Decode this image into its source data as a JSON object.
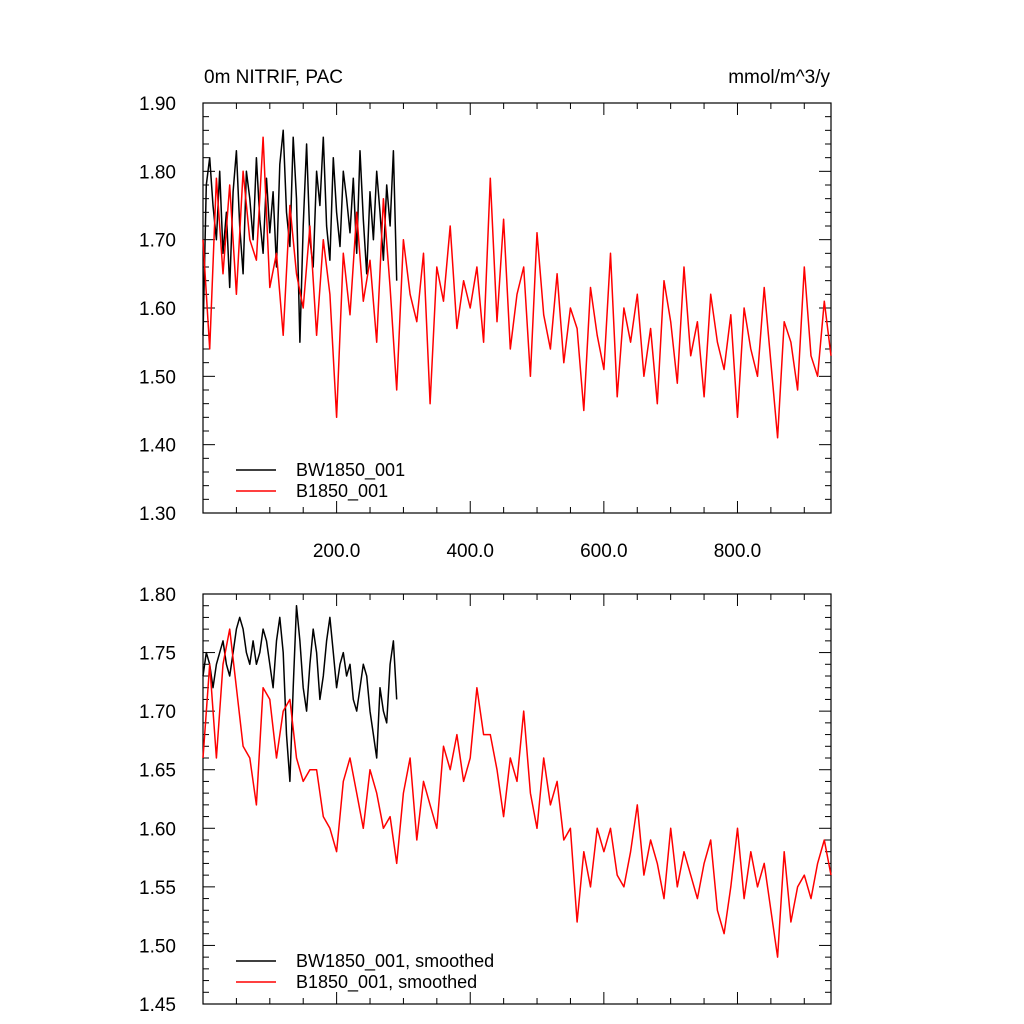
{
  "chart_data": [
    {
      "type": "line",
      "title": "0m NITRIF, PAC",
      "units": "mmol/m^3/y",
      "xlim": [
        0,
        940
      ],
      "ylim": [
        1.3,
        1.9
      ],
      "x_ticks": [
        200,
        400,
        600,
        800
      ],
      "x_tick_labels": [
        "200.0",
        "400.0",
        "600.0",
        "800.0"
      ],
      "y_ticks": [
        1.3,
        1.4,
        1.5,
        1.6,
        1.7,
        1.8,
        1.9
      ],
      "y_tick_labels": [
        "1.30",
        "1.40",
        "1.50",
        "1.60",
        "1.70",
        "1.80",
        "1.90"
      ],
      "grid": false,
      "legend_position": "bottom-left",
      "series": [
        {
          "name": "BW1850_001",
          "color": "#000000",
          "x": [
            0,
            5,
            10,
            15,
            20,
            25,
            30,
            35,
            40,
            45,
            50,
            55,
            60,
            65,
            70,
            75,
            80,
            85,
            90,
            95,
            100,
            105,
            110,
            115,
            120,
            125,
            130,
            135,
            140,
            145,
            150,
            155,
            160,
            165,
            170,
            175,
            180,
            185,
            190,
            195,
            200,
            205,
            210,
            215,
            220,
            225,
            230,
            235,
            240,
            245,
            250,
            255,
            260,
            265,
            270,
            275,
            280,
            285,
            290
          ],
          "values": [
            1.56,
            1.78,
            1.82,
            1.75,
            1.7,
            1.8,
            1.68,
            1.74,
            1.63,
            1.77,
            1.83,
            1.72,
            1.65,
            1.8,
            1.76,
            1.7,
            1.82,
            1.73,
            1.68,
            1.79,
            1.71,
            1.77,
            1.66,
            1.81,
            1.86,
            1.74,
            1.69,
            1.85,
            1.76,
            1.55,
            1.72,
            1.84,
            1.7,
            1.66,
            1.8,
            1.75,
            1.85,
            1.72,
            1.67,
            1.82,
            1.74,
            1.69,
            1.8,
            1.76,
            1.71,
            1.79,
            1.68,
            1.83,
            1.73,
            1.65,
            1.77,
            1.7,
            1.8,
            1.74,
            1.67,
            1.78,
            1.72,
            1.83,
            1.64
          ]
        },
        {
          "name": "B1850_001",
          "color": "#ff0000",
          "x": [
            0,
            10,
            20,
            30,
            40,
            50,
            60,
            70,
            80,
            90,
            100,
            110,
            120,
            130,
            140,
            150,
            160,
            170,
            180,
            190,
            200,
            210,
            220,
            230,
            240,
            250,
            260,
            270,
            280,
            290,
            300,
            310,
            320,
            330,
            340,
            350,
            360,
            370,
            380,
            390,
            400,
            410,
            420,
            430,
            440,
            450,
            460,
            470,
            480,
            490,
            500,
            510,
            520,
            530,
            540,
            550,
            560,
            570,
            580,
            590,
            600,
            610,
            620,
            630,
            640,
            650,
            660,
            670,
            680,
            690,
            700,
            710,
            720,
            730,
            740,
            750,
            760,
            770,
            780,
            790,
            800,
            810,
            820,
            830,
            840,
            850,
            860,
            870,
            880,
            890,
            900,
            910,
            920,
            930,
            940
          ],
          "values": [
            1.7,
            1.54,
            1.79,
            1.65,
            1.78,
            1.62,
            1.8,
            1.7,
            1.67,
            1.85,
            1.63,
            1.68,
            1.56,
            1.75,
            1.65,
            1.6,
            1.72,
            1.56,
            1.7,
            1.62,
            1.44,
            1.68,
            1.59,
            1.74,
            1.61,
            1.67,
            1.55,
            1.76,
            1.63,
            1.48,
            1.7,
            1.62,
            1.58,
            1.68,
            1.46,
            1.66,
            1.61,
            1.72,
            1.57,
            1.64,
            1.6,
            1.66,
            1.55,
            1.79,
            1.58,
            1.73,
            1.54,
            1.62,
            1.66,
            1.5,
            1.71,
            1.59,
            1.54,
            1.65,
            1.52,
            1.6,
            1.57,
            1.45,
            1.63,
            1.56,
            1.51,
            1.68,
            1.47,
            1.6,
            1.55,
            1.62,
            1.5,
            1.57,
            1.46,
            1.64,
            1.58,
            1.49,
            1.66,
            1.53,
            1.58,
            1.47,
            1.62,
            1.55,
            1.51,
            1.59,
            1.44,
            1.6,
            1.54,
            1.5,
            1.63,
            1.52,
            1.41,
            1.58,
            1.55,
            1.48,
            1.66,
            1.53,
            1.5,
            1.61,
            1.53
          ]
        }
      ]
    },
    {
      "type": "line",
      "title": "",
      "xlim": [
        0,
        940
      ],
      "ylim": [
        1.45,
        1.8
      ],
      "x_ticks": [
        200,
        400,
        600,
        800
      ],
      "y_ticks": [
        1.45,
        1.5,
        1.55,
        1.6,
        1.65,
        1.7,
        1.75,
        1.8
      ],
      "y_tick_labels": [
        "1.45",
        "1.50",
        "1.55",
        "1.60",
        "1.65",
        "1.70",
        "1.75",
        "1.80"
      ],
      "grid": false,
      "legend_position": "bottom-left",
      "series": [
        {
          "name": "BW1850_001, smoothed",
          "color": "#000000",
          "x": [
            0,
            5,
            10,
            15,
            20,
            25,
            30,
            35,
            40,
            45,
            50,
            55,
            60,
            65,
            70,
            75,
            80,
            85,
            90,
            95,
            100,
            105,
            110,
            115,
            120,
            125,
            130,
            135,
            140,
            145,
            150,
            155,
            160,
            165,
            170,
            175,
            180,
            185,
            190,
            195,
            200,
            205,
            210,
            215,
            220,
            225,
            230,
            235,
            240,
            245,
            250,
            255,
            260,
            265,
            270,
            275,
            280,
            285,
            290
          ],
          "values": [
            1.73,
            1.75,
            1.74,
            1.72,
            1.74,
            1.75,
            1.76,
            1.74,
            1.73,
            1.75,
            1.77,
            1.78,
            1.77,
            1.75,
            1.74,
            1.76,
            1.74,
            1.75,
            1.77,
            1.76,
            1.74,
            1.72,
            1.76,
            1.78,
            1.75,
            1.68,
            1.64,
            1.72,
            1.79,
            1.76,
            1.72,
            1.7,
            1.74,
            1.77,
            1.75,
            1.71,
            1.73,
            1.76,
            1.78,
            1.75,
            1.72,
            1.74,
            1.75,
            1.73,
            1.74,
            1.71,
            1.7,
            1.72,
            1.74,
            1.73,
            1.7,
            1.68,
            1.66,
            1.72,
            1.7,
            1.69,
            1.74,
            1.76,
            1.71
          ]
        },
        {
          "name": "B1850_001, smoothed",
          "color": "#ff0000",
          "x": [
            0,
            10,
            20,
            30,
            40,
            50,
            60,
            70,
            80,
            90,
            100,
            110,
            120,
            130,
            140,
            150,
            160,
            170,
            180,
            190,
            200,
            210,
            220,
            230,
            240,
            250,
            260,
            270,
            280,
            290,
            300,
            310,
            320,
            330,
            340,
            350,
            360,
            370,
            380,
            390,
            400,
            410,
            420,
            430,
            440,
            450,
            460,
            470,
            480,
            490,
            500,
            510,
            520,
            530,
            540,
            550,
            560,
            570,
            580,
            590,
            600,
            610,
            620,
            630,
            640,
            650,
            660,
            670,
            680,
            690,
            700,
            710,
            720,
            730,
            740,
            750,
            760,
            770,
            780,
            790,
            800,
            810,
            820,
            830,
            840,
            850,
            860,
            870,
            880,
            890,
            900,
            910,
            920,
            930,
            940
          ],
          "values": [
            1.66,
            1.74,
            1.66,
            1.74,
            1.77,
            1.72,
            1.67,
            1.66,
            1.62,
            1.72,
            1.71,
            1.66,
            1.7,
            1.71,
            1.66,
            1.64,
            1.65,
            1.65,
            1.61,
            1.6,
            1.58,
            1.64,
            1.66,
            1.63,
            1.6,
            1.65,
            1.63,
            1.6,
            1.61,
            1.57,
            1.63,
            1.66,
            1.59,
            1.64,
            1.62,
            1.6,
            1.67,
            1.65,
            1.68,
            1.64,
            1.66,
            1.72,
            1.68,
            1.68,
            1.65,
            1.61,
            1.66,
            1.64,
            1.7,
            1.63,
            1.6,
            1.66,
            1.62,
            1.64,
            1.59,
            1.6,
            1.52,
            1.58,
            1.55,
            1.6,
            1.58,
            1.6,
            1.56,
            1.55,
            1.58,
            1.62,
            1.56,
            1.59,
            1.57,
            1.54,
            1.6,
            1.55,
            1.58,
            1.56,
            1.54,
            1.57,
            1.59,
            1.53,
            1.51,
            1.55,
            1.6,
            1.54,
            1.58,
            1.55,
            1.57,
            1.53,
            1.49,
            1.58,
            1.52,
            1.55,
            1.56,
            1.54,
            1.57,
            1.59,
            1.56
          ]
        }
      ]
    }
  ]
}
